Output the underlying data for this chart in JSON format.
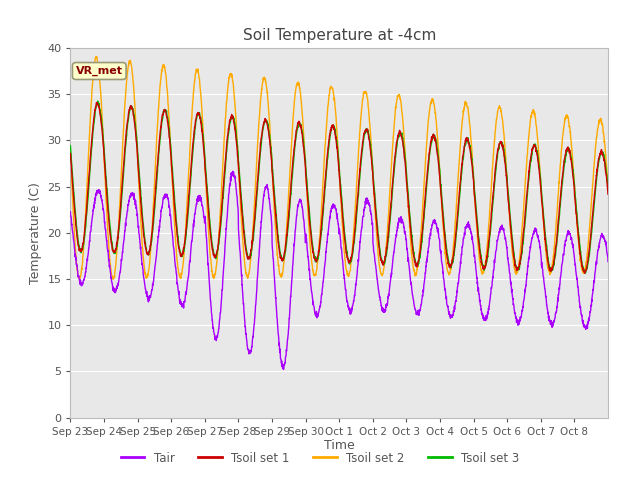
{
  "title": "Soil Temperature at -4cm",
  "xlabel": "Time",
  "ylabel": "Temperature (C)",
  "ylim": [
    0,
    40
  ],
  "yticks": [
    0,
    5,
    10,
    15,
    20,
    25,
    30,
    35,
    40
  ],
  "xtick_labels": [
    "Sep 23",
    "Sep 24",
    "Sep 25",
    "Sep 26",
    "Sep 27",
    "Sep 28",
    "Sep 29",
    "Sep 30",
    "Oct 1",
    "Oct 2",
    "Oct 3",
    "Oct 4",
    "Oct 5",
    "Oct 6",
    "Oct 7",
    "Oct 8"
  ],
  "line_colors": {
    "Tair": "#aa00ff",
    "Tsoil set 1": "#cc0000",
    "Tsoil set 2": "#ffaa00",
    "Tsoil set 3": "#00bb00"
  },
  "legend_labels": [
    "Tair",
    "Tsoil set 1",
    "Tsoil set 2",
    "Tsoil set 3"
  ],
  "annotation_text": "VR_met",
  "annotation_color": "#880000",
  "annotation_bg": "#ffffcc",
  "background_color": "#e8e8e8",
  "grid_color": "#ffffff",
  "title_color": "#444444",
  "axis_label_color": "#555555",
  "tick_label_color": "#555555"
}
